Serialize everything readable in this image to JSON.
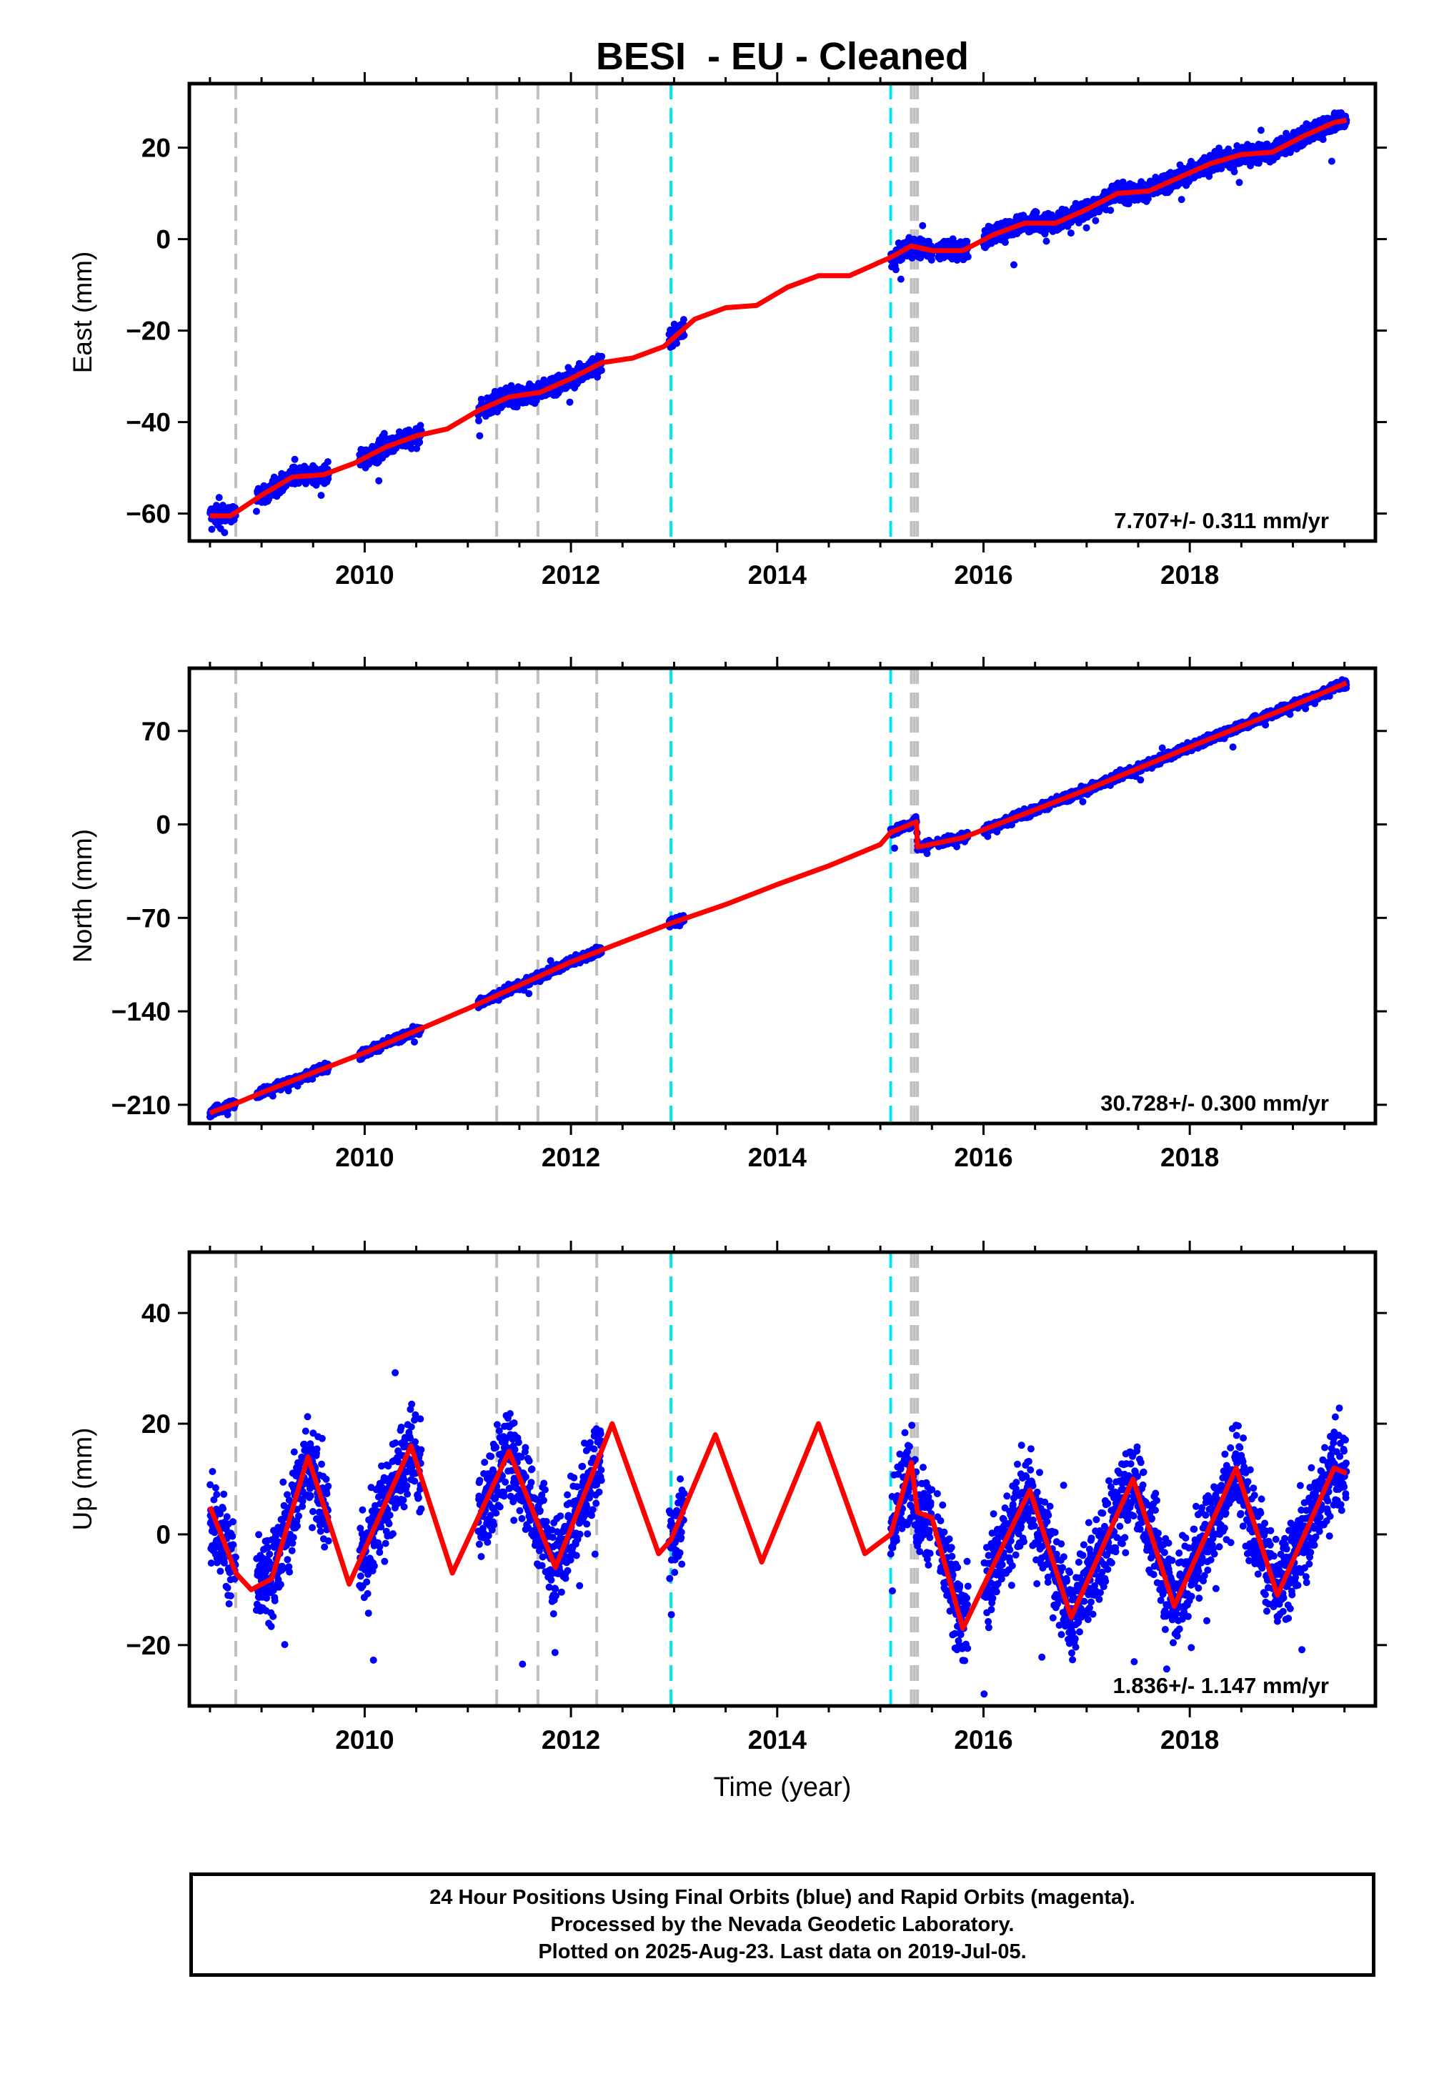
{
  "title": "BESI  - EU - Cleaned",
  "xlabel": "Time (year)",
  "colors": {
    "data": "#0000ff",
    "model": "#ff0000",
    "equipment_change": "#c0c0c0",
    "earthquake": "#00e5ee",
    "axis": "#000000"
  },
  "chart_data": [
    {
      "type": "scatter",
      "name": "east",
      "ylabel": "East (mm)",
      "ylim": [
        -66,
        34
      ],
      "xlim": [
        2008.3,
        2019.8
      ],
      "yticks": [
        -60,
        -40,
        -20,
        0,
        20
      ],
      "yticklabels": [
        "−60",
        "−40",
        "−20",
        "0",
        "20"
      ],
      "xticks": [
        2010,
        2012,
        2014,
        2016,
        2018
      ],
      "xticklabels": [
        "2010",
        "2012",
        "2014",
        "2016",
        "2018"
      ],
      "rate_label": "7.707+/- 0.311 mm/yr",
      "series": [
        {
          "name": "Final Orbits",
          "style": "points",
          "segments": [
            [
              2008.5,
              2008.75
            ],
            [
              2008.95,
              2009.65
            ],
            [
              2009.95,
              2010.55
            ],
            [
              2011.1,
              2011.95
            ],
            [
              2011.95,
              2012.3
            ],
            [
              2012.95,
              2013.1
            ],
            [
              2015.1,
              2015.5
            ],
            [
              2015.55,
              2015.85
            ],
            [
              2016.0,
              2016.9
            ],
            [
              2016.9,
              2017.95
            ],
            [
              2017.95,
              2018.9
            ],
            [
              2018.9,
              2019.52
            ]
          ]
        },
        {
          "name": "Model",
          "style": "line",
          "x": [
            2008.5,
            2008.7,
            2009.0,
            2009.3,
            2009.6,
            2009.9,
            2010.2,
            2010.5,
            2010.8,
            2011.1,
            2011.4,
            2011.7,
            2012.0,
            2012.3,
            2012.6,
            2012.9,
            2013.2,
            2013.5,
            2013.8,
            2014.1,
            2014.4,
            2014.7,
            2015.0,
            2015.1,
            2015.3,
            2015.5,
            2015.8,
            2016.1,
            2016.4,
            2016.7,
            2017.0,
            2017.3,
            2017.6,
            2017.9,
            2018.2,
            2018.5,
            2018.8,
            2019.1,
            2019.4,
            2019.52
          ],
          "y": [
            -60.5,
            -60.5,
            -56.0,
            -52.0,
            -51.5,
            -49.0,
            -45.5,
            -43.0,
            -41.5,
            -37.5,
            -34.5,
            -33.5,
            -30.5,
            -27.0,
            -26.0,
            -23.5,
            -17.5,
            -15.0,
            -14.5,
            -10.5,
            -8.0,
            -8.0,
            -5.0,
            -4.0,
            -1.5,
            -2.5,
            -2.5,
            1.0,
            3.5,
            3.5,
            6.5,
            10.0,
            10.5,
            13.5,
            16.5,
            18.5,
            19.0,
            22.5,
            25.5,
            26.0
          ]
        }
      ],
      "equipment_changes": [
        2008.75,
        2011.28,
        2011.68,
        2012.25,
        2015.3,
        2015.33,
        2015.36
      ],
      "earthquakes": [
        2012.97,
        2015.1
      ]
    },
    {
      "type": "scatter",
      "name": "north",
      "ylabel": "North (mm)",
      "ylim": [
        -224,
        117
      ],
      "xlim": [
        2008.3,
        2019.8
      ],
      "yticks": [
        -210,
        -140,
        -70,
        0,
        70
      ],
      "yticklabels": [
        "−210",
        "−140",
        "−70",
        "0",
        "70"
      ],
      "xticks": [
        2010,
        2012,
        2014,
        2016,
        2018
      ],
      "xticklabels": [
        "2010",
        "2012",
        "2014",
        "2016",
        "2018"
      ],
      "rate_label": "30.728+/- 0.300 mm/yr",
      "series": [
        {
          "name": "Final Orbits",
          "style": "points",
          "segments": [
            [
              2008.5,
              2008.75
            ],
            [
              2008.95,
              2009.65
            ],
            [
              2009.95,
              2010.55
            ],
            [
              2011.1,
              2011.95
            ],
            [
              2011.95,
              2012.3
            ],
            [
              2012.95,
              2013.1
            ],
            [
              2015.1,
              2015.5
            ],
            [
              2015.55,
              2015.85
            ],
            [
              2016.0,
              2016.9
            ],
            [
              2016.9,
              2017.95
            ],
            [
              2017.95,
              2018.9
            ],
            [
              2018.9,
              2019.52
            ]
          ]
        },
        {
          "name": "Model",
          "style": "line",
          "x": [
            2008.5,
            2008.75,
            2009.0,
            2010.0,
            2011.0,
            2012.0,
            2012.97,
            2013.5,
            2014.0,
            2014.5,
            2015.0,
            2015.1,
            2015.35,
            2015.36,
            2015.8,
            2016.5,
            2017.0,
            2018.0,
            2019.0,
            2019.52
          ],
          "y": [
            -216.0,
            -209.0,
            -201.0,
            -171.0,
            -138.0,
            -103.0,
            -74.0,
            -60.0,
            -45.0,
            -31.0,
            -15.0,
            -6.0,
            2.0,
            -17.0,
            -10.0,
            11.0,
            26.0,
            58.0,
            89.0,
            106.0
          ]
        }
      ],
      "equipment_changes": [
        2008.75,
        2011.28,
        2011.68,
        2012.25,
        2015.3,
        2015.33,
        2015.36
      ],
      "earthquakes": [
        2012.97,
        2015.1
      ]
    },
    {
      "type": "scatter",
      "name": "up",
      "ylabel": "Up (mm)",
      "ylim": [
        -31,
        51
      ],
      "xlim": [
        2008.3,
        2019.8
      ],
      "yticks": [
        -20,
        0,
        20,
        40
      ],
      "yticklabels": [
        "−20",
        "0",
        "20",
        "40"
      ],
      "xticks": [
        2010,
        2012,
        2014,
        2016,
        2018
      ],
      "xticklabels": [
        "2010",
        "2012",
        "2014",
        "2016",
        "2018"
      ],
      "rate_label": "1.836+/- 1.147 mm/yr",
      "series": [
        {
          "name": "Final Orbits",
          "style": "points",
          "segments": [
            [
              2008.5,
              2008.75
            ],
            [
              2008.95,
              2009.65
            ],
            [
              2009.95,
              2010.55
            ],
            [
              2011.1,
              2011.95
            ],
            [
              2011.95,
              2012.3
            ],
            [
              2012.95,
              2013.1
            ],
            [
              2015.1,
              2015.5
            ],
            [
              2015.55,
              2015.85
            ],
            [
              2016.0,
              2016.9
            ],
            [
              2016.9,
              2017.95
            ],
            [
              2017.95,
              2018.9
            ],
            [
              2018.9,
              2019.52
            ]
          ]
        },
        {
          "name": "Model",
          "style": "line",
          "x": [
            2008.5,
            2008.65,
            2008.75,
            2008.9,
            2009.1,
            2009.45,
            2009.85,
            2010.45,
            2010.85,
            2011.4,
            2011.85,
            2012.4,
            2012.85,
            2012.97,
            2013.4,
            2013.85,
            2014.4,
            2014.85,
            2015.1,
            2015.3,
            2015.36,
            2015.5,
            2015.8,
            2016.45,
            2016.85,
            2017.45,
            2017.85,
            2018.45,
            2018.85,
            2019.4,
            2019.52
          ],
          "y": [
            5.0,
            -2.0,
            -7.0,
            -10.0,
            -8.0,
            14.0,
            -9.0,
            16.0,
            -7.0,
            15.0,
            -6.0,
            20.0,
            -3.5,
            -1.0,
            18.0,
            -5.0,
            20.0,
            -3.5,
            0.0,
            13.0,
            4.0,
            3.0,
            -17.0,
            8.0,
            -15.0,
            10.0,
            -13.0,
            12.0,
            -11.0,
            12.0,
            11.0
          ]
        }
      ],
      "equipment_changes": [
        2008.75,
        2011.28,
        2011.68,
        2012.25,
        2015.3,
        2015.33,
        2015.36
      ],
      "earthquakes": [
        2012.97,
        2015.1
      ]
    }
  ],
  "caption": [
    "24 Hour Positions Using Final Orbits (blue) and Rapid Orbits (magenta).",
    "Processed by the Nevada Geodetic Laboratory.",
    "Plotted on 2025-Aug-23. Last data on 2019-Jul-05."
  ]
}
